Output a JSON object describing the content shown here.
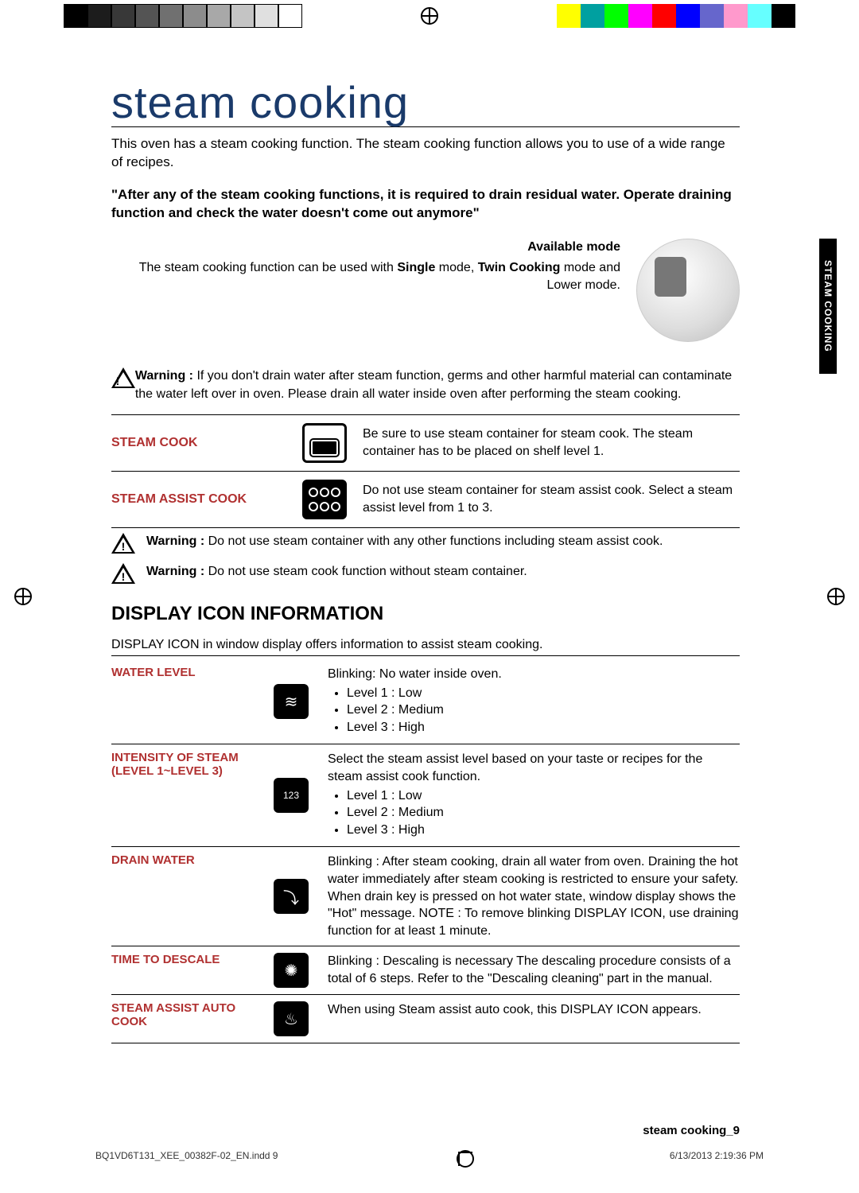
{
  "title": "steam cooking",
  "intro": "This oven has a steam cooking function. The steam cooking function allows you to use of a wide range of recipes.",
  "callout": "\"After any of the steam cooking functions, it is required to drain residual water. Operate draining function and check the water doesn't come out anymore\"",
  "available_mode": {
    "heading": "Available mode",
    "text_before": "The steam cooking function can be used with ",
    "bold1": "Single",
    "mid": " mode, ",
    "bold2": "Twin Cooking",
    "text_after": " mode and Lower mode."
  },
  "warning1": "If you don't drain water after steam function, germs and other harmful material can contaminate the water left over in oven. Please drain all water inside oven after performing the steam cooking.",
  "modes": {
    "steam_cook": {
      "label": "STEAM COOK",
      "desc": "Be sure to use steam container for steam cook.\nThe steam container has to be placed on shelf level 1."
    },
    "steam_assist": {
      "label": "STEAM ASSIST COOK",
      "desc": "Do not use steam container for steam assist cook.\nSelect a steam assist level from 1 to 3."
    }
  },
  "warning2": "Do not use steam container with any other functions including steam assist cook.",
  "warning3": "Do not use steam cook function without steam container.",
  "warning_label": "Warning :",
  "display_icon": {
    "title": "DISPLAY ICON INFORMATION",
    "intro": "DISPLAY ICON in window display offers information to assist steam cooking.",
    "rows": {
      "water_level": {
        "label": "WATER LEVEL",
        "lead": "Blinking: No water inside oven.",
        "items": [
          "Level 1 : Low",
          "Level 2 : Medium",
          "Level 3 : High"
        ],
        "glyph": "≋"
      },
      "intensity": {
        "label": "INTENSITY OF STEAM",
        "sub": "(Level 1~Level 3)",
        "lead": "Select the steam assist level based on your taste or recipes for the steam assist cook function.",
        "items": [
          "Level 1 : Low",
          "Level 2 : Medium",
          "Level 3 : High"
        ],
        "glyph": "123"
      },
      "drain": {
        "label": "DRAIN WATER",
        "text": "Blinking : After steam cooking, drain all water from oven. Draining the hot water immediately after steam cooking is restricted to ensure your safety. When drain key is pressed on hot water state, window display shows the \"Hot\" message. NOTE : To remove blinking DISPLAY ICON, use draining function for at least 1 minute.",
        "glyph": "⤵"
      },
      "descale": {
        "label": "TIME TO DESCALE",
        "text": "Blinking : Descaling is necessary\nThe descaling procedure consists of a total of 6 steps. Refer to the \"Descaling cleaning\" part in the manual.",
        "glyph": "✺"
      },
      "auto": {
        "label": "STEAM ASSIST AUTO COOK",
        "text": "When using Steam assist auto cook, this DISPLAY ICON appears.",
        "glyph": "♨"
      }
    }
  },
  "sidebar": "STEAM COOKING",
  "footer": "steam cooking_9",
  "imprint": {
    "file": "BQ1VD6T131_XEE_00382F-02_EN.indd   9",
    "date": "6/13/2013   2:19:36 PM"
  },
  "colors": {
    "grayscale": [
      "#000000",
      "#1c1c1c",
      "#383838",
      "#545454",
      "#707070",
      "#8c8c8c",
      "#a8a8a8",
      "#c4c4c4",
      "#e0e0e0",
      "#ffffff"
    ],
    "colorbar": [
      "#ffffff",
      "#ffff00",
      "#00a0a0",
      "#00ff00",
      "#ff00ff",
      "#ff0000",
      "#0000ff",
      "#6666cc",
      "#ff99cc",
      "#66ffff",
      "#000000"
    ]
  }
}
